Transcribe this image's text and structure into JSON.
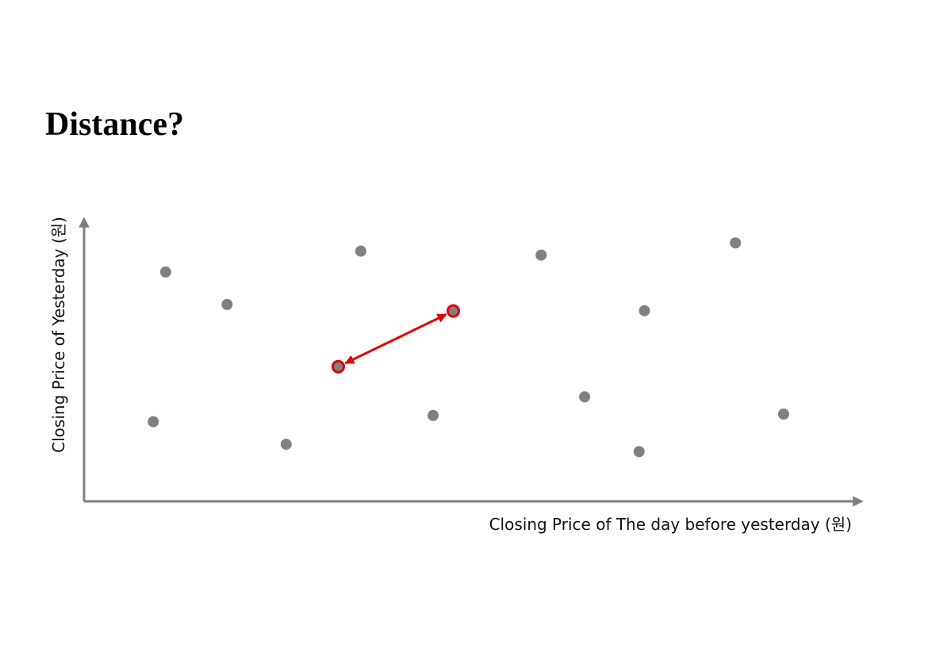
{
  "title": "Distance?",
  "chart_data": {
    "type": "scatter",
    "xlabel": "Closing Price of The day before yesterday (원)",
    "ylabel": "Closing Price of Yesterday (원)",
    "xlim": [
      0,
      100
    ],
    "ylim": [
      0,
      100
    ],
    "colors": {
      "axis": "#7f7f7f",
      "point": "#808080",
      "highlight": "#e00000"
    },
    "points": [
      {
        "x": 10.5,
        "y": 81.2
      },
      {
        "x": 18.4,
        "y": 69.7
      },
      {
        "x": 35.6,
        "y": 88.6
      },
      {
        "x": 58.8,
        "y": 87.2
      },
      {
        "x": 83.8,
        "y": 91.5
      },
      {
        "x": 72.1,
        "y": 67.5
      },
      {
        "x": 8.9,
        "y": 28.2
      },
      {
        "x": 26.0,
        "y": 20.2
      },
      {
        "x": 44.9,
        "y": 30.4
      },
      {
        "x": 64.4,
        "y": 37.0
      },
      {
        "x": 71.4,
        "y": 17.6
      },
      {
        "x": 90.0,
        "y": 30.9
      }
    ],
    "highlighted_points": [
      {
        "x": 32.7,
        "y": 47.7
      },
      {
        "x": 47.5,
        "y": 67.4
      }
    ],
    "annotation": {
      "type": "double-arrow",
      "from_index": 0,
      "to_index": 1
    }
  }
}
